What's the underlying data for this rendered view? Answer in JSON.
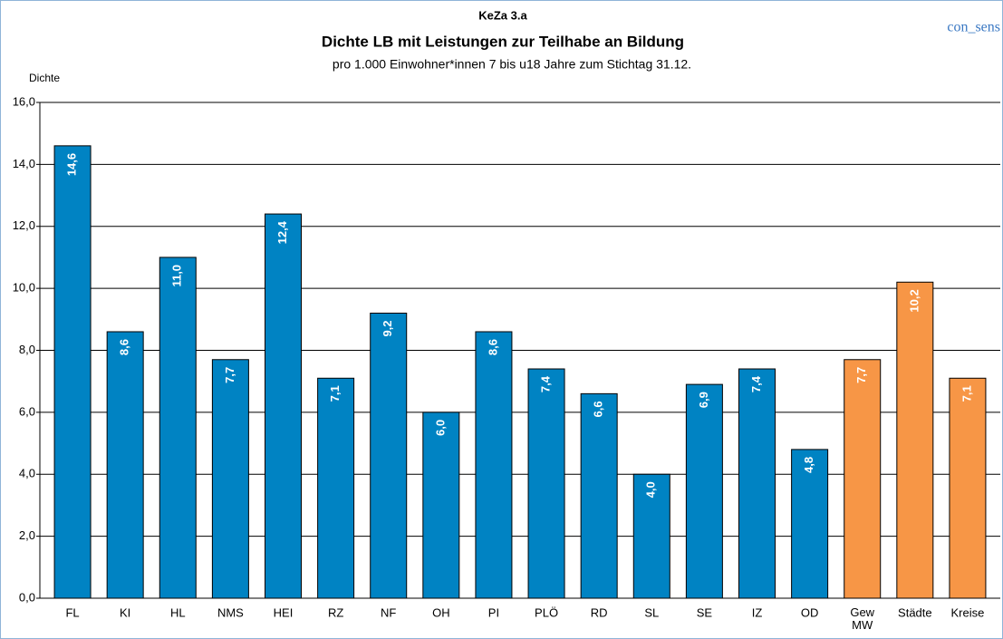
{
  "chart_data": {
    "type": "bar",
    "kicker": "KeZa 3.a",
    "title": "Dichte LB mit Leistungen zur Teilhabe an Bildung",
    "subtitle": "pro 1.000 Einwohner*innen 7 bis u18 Jahre zum Stichtag 31.12.",
    "brand": "con_sens",
    "ylabel": "Dichte",
    "categories": [
      "FL",
      "KI",
      "HL",
      "NMS",
      "HEI",
      "RZ",
      "NF",
      "OH",
      "PI",
      "PLÖ",
      "RD",
      "SL",
      "SE",
      "IZ",
      "OD",
      "Gew\nMW",
      "Städte",
      "Kreise"
    ],
    "values": [
      14.6,
      8.6,
      11.0,
      7.7,
      12.4,
      7.1,
      9.2,
      6.0,
      8.6,
      7.4,
      6.6,
      4.0,
      6.9,
      7.4,
      4.8,
      7.7,
      10.2,
      7.1
    ],
    "value_labels": [
      "14,6",
      "8,6",
      "11,0",
      "7,7",
      "12,4",
      "7,1",
      "9,2",
      "6,0",
      "8,6",
      "7,4",
      "6,6",
      "4,0",
      "6,9",
      "7,4",
      "4,8",
      "7,7",
      "10,2",
      "7,1"
    ],
    "colors": [
      "#0083c3",
      "#0083c3",
      "#0083c3",
      "#0083c3",
      "#0083c3",
      "#0083c3",
      "#0083c3",
      "#0083c3",
      "#0083c3",
      "#0083c3",
      "#0083c3",
      "#0083c3",
      "#0083c3",
      "#0083c3",
      "#0083c3",
      "#f79646",
      "#f79646",
      "#f79646"
    ],
    "ylim": [
      0,
      16
    ],
    "yticks": [
      {
        "value": 0,
        "label": "0,0"
      },
      {
        "value": 2,
        "label": "2,0"
      },
      {
        "value": 4,
        "label": "4,0"
      },
      {
        "value": 6,
        "label": "6,0"
      },
      {
        "value": 8,
        "label": "8,0"
      },
      {
        "value": 10,
        "label": "10,0"
      },
      {
        "value": 12,
        "label": "12,0"
      },
      {
        "value": 14,
        "label": "14,0"
      },
      {
        "value": 16,
        "label": "16,0"
      }
    ],
    "grid": true
  }
}
